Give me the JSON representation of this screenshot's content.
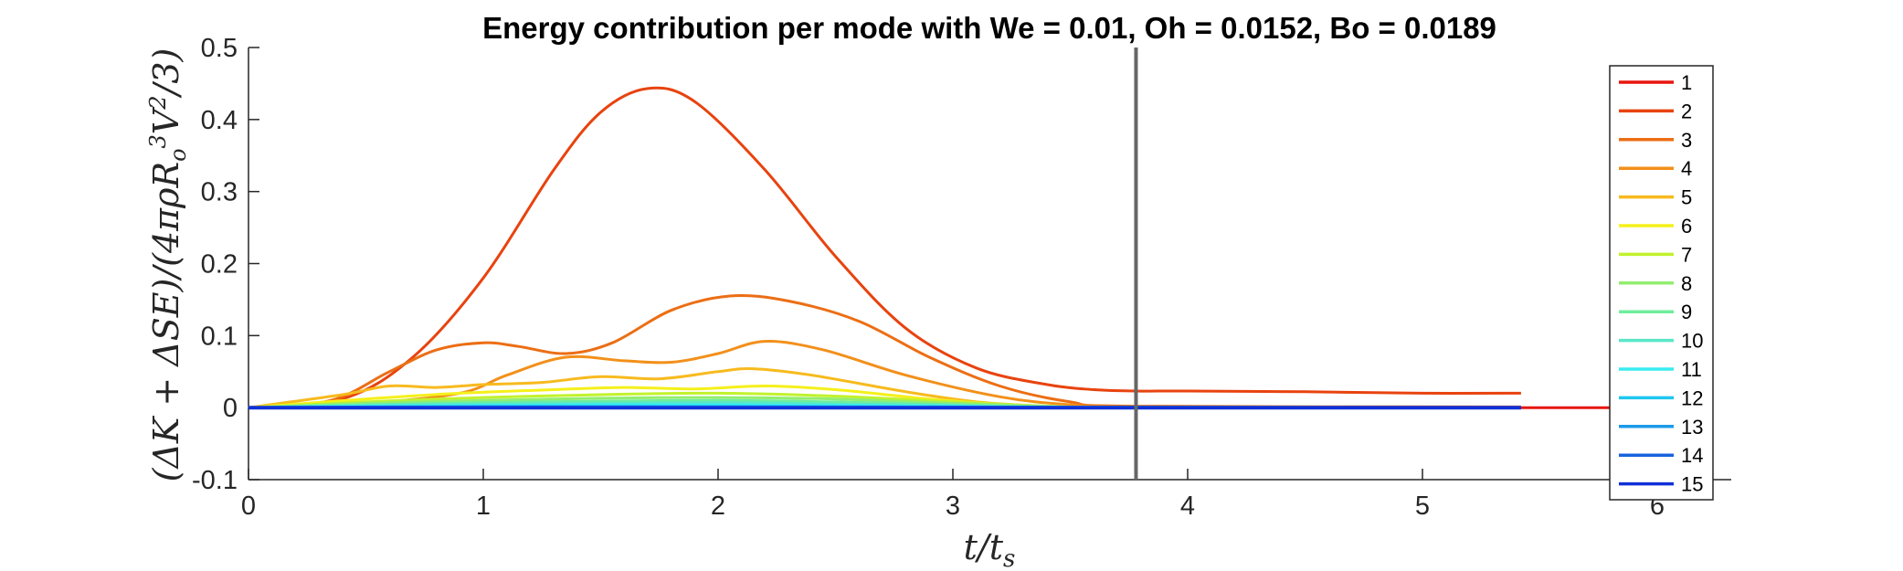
{
  "chart_data": {
    "type": "line",
    "title": "Energy contribution per mode with We = 0.01, Oh = 0.0152, Bo = 0.0189",
    "xlabel": "t/t_s",
    "ylabel": "(ΔK + ΔSE)/(4πρR_o^3V^2/3)",
    "xlim": [
      0,
      6
    ],
    "ylim": [
      -0.1,
      0.5
    ],
    "xticks": [
      0,
      1,
      2,
      3,
      4,
      5,
      6
    ],
    "yticks": [
      -0.1,
      0,
      0.1,
      0.2,
      0.3,
      0.4,
      0.5
    ],
    "xtick_labels": [
      "0",
      "1",
      "2",
      "3",
      "4",
      "5",
      "6"
    ],
    "ytick_labels": [
      "-0.1",
      "0",
      "0.1",
      "0.2",
      "0.3",
      "0.4",
      "0.5"
    ],
    "grid": false,
    "legend_position": "right (inside, top-right)",
    "vertical_line_x": 3.78,
    "vertical_line_color": "#666666",
    "series": [
      {
        "name": "1",
        "color": "#e8150f",
        "x": [
          0,
          6
        ],
        "y": [
          0,
          0
        ]
      },
      {
        "name": "2",
        "color": "#e8430f",
        "x": [
          0,
          0.4,
          0.7,
          1.0,
          1.3,
          1.5,
          1.7,
          1.9,
          2.2,
          2.5,
          2.8,
          3.1,
          3.4,
          3.6,
          3.78,
          4.0,
          4.5,
          5.0,
          5.42
        ],
        "y": [
          0,
          0.012,
          0.07,
          0.18,
          0.33,
          0.41,
          0.443,
          0.425,
          0.33,
          0.21,
          0.11,
          0.055,
          0.032,
          0.025,
          0.023,
          0.023,
          0.022,
          0.02,
          0.02
        ]
      },
      {
        "name": "3",
        "color": "#ec6e14",
        "x": [
          0,
          0.35,
          0.6,
          0.8,
          1.0,
          1.15,
          1.35,
          1.55,
          1.8,
          2.05,
          2.3,
          2.6,
          2.9,
          3.2,
          3.5,
          3.78,
          5.42
        ],
        "y": [
          0,
          0.01,
          0.05,
          0.08,
          0.09,
          0.085,
          0.075,
          0.09,
          0.135,
          0.155,
          0.148,
          0.12,
          0.07,
          0.03,
          0.008,
          0.002,
          0.001
        ]
      },
      {
        "name": "4",
        "color": "#f2901a",
        "x": [
          0,
          0.5,
          0.9,
          1.1,
          1.35,
          1.6,
          1.8,
          2.0,
          2.2,
          2.45,
          2.8,
          3.2,
          3.5,
          3.78,
          5.42
        ],
        "y": [
          0,
          0.006,
          0.02,
          0.045,
          0.07,
          0.065,
          0.063,
          0.075,
          0.092,
          0.08,
          0.045,
          0.015,
          0.004,
          0.001,
          0.0
        ]
      },
      {
        "name": "5",
        "color": "#f7ba1e",
        "x": [
          0,
          0.4,
          0.6,
          0.8,
          1.0,
          1.25,
          1.5,
          1.75,
          2.0,
          2.15,
          2.4,
          2.8,
          3.1,
          3.4,
          3.78,
          5.42
        ],
        "y": [
          0,
          0.018,
          0.03,
          0.028,
          0.032,
          0.035,
          0.043,
          0.04,
          0.05,
          0.054,
          0.045,
          0.022,
          0.008,
          0.002,
          0.0,
          0.0
        ]
      },
      {
        "name": "6",
        "color": "#f5f01a",
        "x": [
          0,
          0.5,
          0.9,
          1.3,
          1.6,
          1.9,
          2.2,
          2.5,
          2.9,
          3.3,
          3.78,
          5.42
        ],
        "y": [
          0,
          0.012,
          0.02,
          0.025,
          0.028,
          0.026,
          0.03,
          0.025,
          0.012,
          0.003,
          0.0,
          0.0
        ]
      },
      {
        "name": "7",
        "color": "#c2f22c",
        "x": [
          0,
          0.5,
          1.0,
          1.5,
          2.0,
          2.5,
          3.0,
          3.4,
          3.78,
          5.42
        ],
        "y": [
          0,
          0.008,
          0.014,
          0.018,
          0.02,
          0.016,
          0.008,
          0.002,
          0.0,
          0.0
        ]
      },
      {
        "name": "8",
        "color": "#93ee6f",
        "x": [
          0,
          0.5,
          1.0,
          1.5,
          2.0,
          2.5,
          3.0,
          3.4,
          3.78,
          5.42
        ],
        "y": [
          0,
          0.006,
          0.01,
          0.013,
          0.014,
          0.012,
          0.006,
          0.002,
          0.0,
          0.0
        ]
      },
      {
        "name": "9",
        "color": "#6eee9c",
        "x": [
          0,
          0.5,
          1.0,
          1.5,
          2.0,
          2.5,
          3.0,
          3.4,
          3.78,
          5.42
        ],
        "y": [
          0,
          0.004,
          0.007,
          0.009,
          0.01,
          0.008,
          0.004,
          0.001,
          0.0,
          0.0
        ]
      },
      {
        "name": "10",
        "color": "#59e8c8",
        "x": [
          0,
          0.5,
          1.0,
          1.5,
          2.0,
          2.5,
          3.0,
          3.5,
          5.42
        ],
        "y": [
          0,
          0.003,
          0.005,
          0.006,
          0.007,
          0.005,
          0.003,
          0.0,
          0.0
        ]
      },
      {
        "name": "11",
        "color": "#38ecf0",
        "x": [
          0,
          0.5,
          1.0,
          1.5,
          2.0,
          2.5,
          3.0,
          3.5,
          5.42
        ],
        "y": [
          0,
          0.002,
          0.003,
          0.004,
          0.004,
          0.003,
          0.002,
          0.0,
          0.0
        ]
      },
      {
        "name": "12",
        "color": "#1fc6f0",
        "x": [
          0,
          1.0,
          2.0,
          3.0,
          5.42
        ],
        "y": [
          0,
          0.002,
          0.002,
          0.001,
          0.0
        ]
      },
      {
        "name": "13",
        "color": "#1b9ae8",
        "x": [
          0,
          5.42
        ],
        "y": [
          0,
          0
        ]
      },
      {
        "name": "14",
        "color": "#1763df",
        "x": [
          0,
          5.42
        ],
        "y": [
          0,
          0
        ]
      },
      {
        "name": "15",
        "color": "#1030d8",
        "x": [
          0,
          5.42
        ],
        "y": [
          0,
          0
        ]
      }
    ]
  }
}
